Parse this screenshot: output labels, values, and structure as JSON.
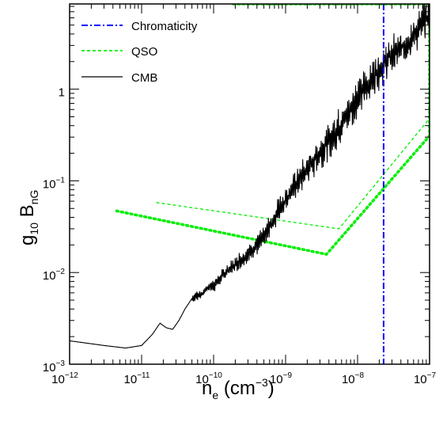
{
  "chart_data": {
    "type": "line",
    "xscale": "log",
    "yscale": "log",
    "xlim": [
      1e-12,
      1e-07
    ],
    "ylim": [
      0.001,
      8.5
    ],
    "xlabel": "n_e (cm^-3)",
    "ylabel": "g_10 B_nG",
    "x_ticks": [
      {
        "base": "10",
        "exp": "−12"
      },
      {
        "base": "10",
        "exp": "−11"
      },
      {
        "base": "10",
        "exp": "−10"
      },
      {
        "base": "10",
        "exp": "−9"
      },
      {
        "base": "10",
        "exp": "−8"
      },
      {
        "base": "10",
        "exp": "−7"
      }
    ],
    "y_ticks": [
      {
        "base": "10",
        "exp": "−3"
      },
      {
        "base": "10",
        "exp": "−2"
      },
      {
        "base": "10",
        "exp": "−1"
      },
      {
        "base": "1",
        "exp": ""
      }
    ],
    "grid": false,
    "legend_position": "top-left",
    "series": [
      {
        "name": "Chromaticity",
        "style": "dash-dot",
        "color": "#0000ff",
        "vertical_x": 2.3e-08
      },
      {
        "name": "QSO",
        "style": "dashed",
        "color": "#00ee00",
        "outer_polygon": [
          [
            4.5e-12,
            0.047
          ],
          [
            3.7e-09,
            0.0158
          ],
          [
            1e-07,
            0.31
          ],
          [
            1e-07,
            8.5
          ],
          [
            1.8e-10,
            8.5
          ]
        ],
        "inner_polygon": [
          [
            1.6e-11,
            0.058
          ],
          [
            5.5e-09,
            0.03
          ],
          [
            1e-07,
            0.48
          ],
          [
            1e-07,
            8.5
          ],
          [
            2.6e-10,
            8.5
          ]
        ]
      },
      {
        "name": "CMB",
        "style": "solid",
        "color": "#000000",
        "x": [
          1e-12,
          3e-12,
          6e-12,
          1e-11,
          1.4e-11,
          1.8e-11,
          2.2e-11,
          2.7e-11,
          3.3e-11,
          4e-11,
          5e-11,
          6e-11,
          7e-11,
          8e-11,
          1e-10,
          1.2e-10,
          1.5e-10,
          2e-10,
          3e-10,
          5e-10,
          8e-10,
          1e-09,
          2e-09,
          5e-09,
          1e-08,
          2e-08,
          3e-08,
          5e-08,
          8e-08,
          1e-07
        ],
        "y": [
          0.0018,
          0.0016,
          0.0015,
          0.0016,
          0.0021,
          0.0028,
          0.0025,
          0.0024,
          0.003,
          0.004,
          0.0052,
          0.0057,
          0.0058,
          0.0068,
          0.0072,
          0.0085,
          0.0102,
          0.0122,
          0.016,
          0.024,
          0.048,
          0.064,
          0.135,
          0.34,
          0.8,
          1.65,
          2.35,
          3.2,
          5.2,
          6.5
        ]
      }
    ]
  }
}
